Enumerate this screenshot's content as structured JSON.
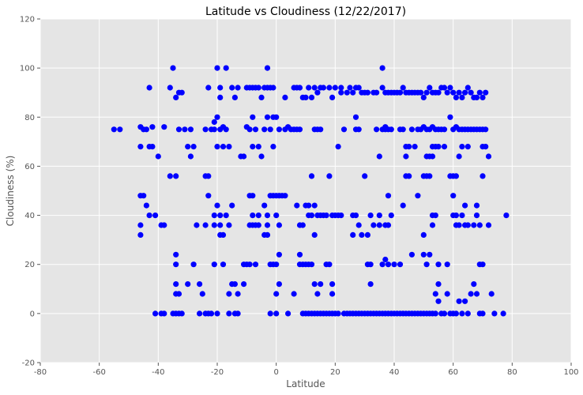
{
  "chart_data": {
    "type": "scatter",
    "title": "Latitude vs Cloudiness (12/22/2017)",
    "xlabel": "Latitude",
    "ylabel": "Cloudiness (%)",
    "xlim": [
      -80,
      100
    ],
    "ylim": [
      -20,
      120
    ],
    "x_ticks": [
      -80,
      -60,
      -40,
      -20,
      0,
      20,
      40,
      60,
      80,
      100
    ],
    "y_ticks": [
      -20,
      0,
      20,
      40,
      60,
      80,
      100,
      120
    ],
    "grid": true,
    "plot_background": "#e5e5e5",
    "marker_color": "#0000ff",
    "points": [
      [
        -55,
        75
      ],
      [
        -53,
        75
      ],
      [
        -46,
        76
      ],
      [
        -45,
        75
      ],
      [
        -46,
        68
      ],
      [
        -44,
        75
      ],
      [
        -42,
        76
      ],
      [
        -46,
        36
      ],
      [
        -46,
        32
      ],
      [
        -45,
        48
      ],
      [
        -46,
        48
      ],
      [
        -43,
        92
      ],
      [
        -43,
        68
      ],
      [
        -42,
        68
      ],
      [
        -44,
        44
      ],
      [
        -43,
        40
      ],
      [
        -41,
        40
      ],
      [
        -40,
        64
      ],
      [
        -41,
        0
      ],
      [
        -39,
        0
      ],
      [
        -38,
        0
      ],
      [
        -38,
        36
      ],
      [
        -39,
        36
      ],
      [
        -38,
        76
      ],
      [
        -36,
        56
      ],
      [
        -36,
        92
      ],
      [
        -35,
        100
      ],
      [
        -34,
        88
      ],
      [
        -33,
        90
      ],
      [
        -32,
        90
      ],
      [
        -34,
        56
      ],
      [
        -33,
        75
      ],
      [
        -31,
        75
      ],
      [
        -29,
        75
      ],
      [
        -30,
        68
      ],
      [
        -28,
        68
      ],
      [
        -29,
        64
      ],
      [
        -35,
        0
      ],
      [
        -34,
        0
      ],
      [
        -33,
        0
      ],
      [
        -32,
        0
      ],
      [
        -34,
        24
      ],
      [
        -34,
        20
      ],
      [
        -33,
        8
      ],
      [
        -34,
        8
      ],
      [
        -34,
        12
      ],
      [
        -30,
        12
      ],
      [
        -28,
        20
      ],
      [
        -27,
        36
      ],
      [
        -26,
        12
      ],
      [
        -25,
        8
      ],
      [
        -24,
        0
      ],
      [
        -23,
        0
      ],
      [
        -26,
        0
      ],
      [
        -24,
        36
      ],
      [
        -24,
        56
      ],
      [
        -23,
        56
      ],
      [
        -23,
        48
      ],
      [
        -24,
        75
      ],
      [
        -23,
        92
      ],
      [
        -22,
        75
      ],
      [
        -21,
        78
      ],
      [
        -20,
        80
      ],
      [
        -20,
        100
      ],
      [
        -19,
        92
      ],
      [
        -19,
        88
      ],
      [
        -18,
        76
      ],
      [
        -21,
        75
      ],
      [
        -19,
        75
      ],
      [
        -17,
        75
      ],
      [
        -20,
        68
      ],
      [
        -18,
        68
      ],
      [
        -16,
        68
      ],
      [
        -17,
        100
      ],
      [
        -15,
        92
      ],
      [
        -14,
        88
      ],
      [
        -13,
        92
      ],
      [
        -21,
        40
      ],
      [
        -19,
        40
      ],
      [
        -20,
        44
      ],
      [
        -21,
        36
      ],
      [
        -19,
        36
      ],
      [
        -19,
        32
      ],
      [
        -18,
        32
      ],
      [
        -17,
        40
      ],
      [
        -16,
        36
      ],
      [
        -15,
        44
      ],
      [
        -15,
        12
      ],
      [
        -14,
        12
      ],
      [
        -13,
        8
      ],
      [
        -16,
        8
      ],
      [
        -18,
        20
      ],
      [
        -21,
        20
      ],
      [
        -22,
        0
      ],
      [
        -20,
        0
      ],
      [
        -16,
        0
      ],
      [
        -14,
        0
      ],
      [
        -13,
        0
      ],
      [
        -12,
        64
      ],
      [
        -11,
        64
      ],
      [
        -10,
        76
      ],
      [
        -9,
        75
      ],
      [
        -11,
        20
      ],
      [
        -10,
        20
      ],
      [
        -11,
        12
      ],
      [
        -9,
        20
      ],
      [
        -8,
        36
      ],
      [
        -9,
        36
      ],
      [
        -8,
        40
      ],
      [
        -7,
        36
      ],
      [
        -7,
        20
      ],
      [
        -6,
        36
      ],
      [
        -6,
        40
      ],
      [
        -9,
        48
      ],
      [
        -8,
        48
      ],
      [
        -10,
        92
      ],
      [
        -9,
        92
      ],
      [
        -8,
        92
      ],
      [
        -7,
        92
      ],
      [
        -6,
        92
      ],
      [
        -5,
        88
      ],
      [
        -4,
        92
      ],
      [
        -3,
        92
      ],
      [
        -3,
        100
      ],
      [
        -2,
        92
      ],
      [
        -1,
        92
      ],
      [
        -8,
        80
      ],
      [
        -8,
        68
      ],
      [
        -7,
        75
      ],
      [
        -6,
        68
      ],
      [
        -5,
        64
      ],
      [
        -4,
        75
      ],
      [
        -3,
        80
      ],
      [
        -2,
        75
      ],
      [
        -1,
        80
      ],
      [
        -1,
        68
      ],
      [
        0,
        80
      ],
      [
        1,
        75
      ],
      [
        -4,
        44
      ],
      [
        -3,
        40
      ],
      [
        -3,
        36
      ],
      [
        -4,
        32
      ],
      [
        -3,
        32
      ],
      [
        -2,
        48
      ],
      [
        -1,
        48
      ],
      [
        0,
        48
      ],
      [
        1,
        48
      ],
      [
        0,
        40
      ],
      [
        1,
        36
      ],
      [
        2,
        48
      ],
      [
        3,
        48
      ],
      [
        -2,
        20
      ],
      [
        -1,
        20
      ],
      [
        0,
        8
      ],
      [
        1,
        12
      ],
      [
        1,
        24
      ],
      [
        0,
        20
      ],
      [
        -2,
        0
      ],
      [
        0,
        0
      ],
      [
        3,
        75
      ],
      [
        4,
        76
      ],
      [
        5,
        75
      ],
      [
        6,
        75
      ],
      [
        7,
        75
      ],
      [
        8,
        75
      ],
      [
        3,
        88
      ],
      [
        6,
        92
      ],
      [
        7,
        92
      ],
      [
        8,
        92
      ],
      [
        9,
        88
      ],
      [
        10,
        88
      ],
      [
        11,
        92
      ],
      [
        12,
        88
      ],
      [
        13,
        92
      ],
      [
        14,
        90
      ],
      [
        15,
        92
      ],
      [
        16,
        92
      ],
      [
        18,
        92
      ],
      [
        19,
        88
      ],
      [
        20,
        92
      ],
      [
        7,
        44
      ],
      [
        8,
        36
      ],
      [
        9,
        36
      ],
      [
        10,
        44
      ],
      [
        11,
        40
      ],
      [
        11,
        44
      ],
      [
        12,
        40
      ],
      [
        13,
        44
      ],
      [
        13,
        32
      ],
      [
        14,
        40
      ],
      [
        15,
        40
      ],
      [
        16,
        40
      ],
      [
        17,
        40
      ],
      [
        18,
        56
      ],
      [
        19,
        40
      ],
      [
        20,
        40
      ],
      [
        21,
        40
      ],
      [
        22,
        40
      ],
      [
        8,
        20
      ],
      [
        8,
        24
      ],
      [
        9,
        20
      ],
      [
        10,
        20
      ],
      [
        11,
        20
      ],
      [
        12,
        20
      ],
      [
        13,
        12
      ],
      [
        14,
        8
      ],
      [
        15,
        12
      ],
      [
        16,
        0
      ],
      [
        17,
        20
      ],
      [
        18,
        20
      ],
      [
        19,
        12
      ],
      [
        19,
        8
      ],
      [
        4,
        0
      ],
      [
        6,
        8
      ],
      [
        9,
        0
      ],
      [
        10,
        0
      ],
      [
        11,
        0
      ],
      [
        12,
        0
      ],
      [
        13,
        0
      ],
      [
        14,
        0
      ],
      [
        15,
        0
      ],
      [
        17,
        0
      ],
      [
        18,
        0
      ],
      [
        19,
        0
      ],
      [
        20,
        0
      ],
      [
        12,
        56
      ],
      [
        13,
        75
      ],
      [
        14,
        75
      ],
      [
        15,
        75
      ],
      [
        21,
        68
      ],
      [
        23,
        75
      ],
      [
        24,
        90
      ],
      [
        25,
        92
      ],
      [
        26,
        90
      ],
      [
        27,
        92
      ],
      [
        28,
        92
      ],
      [
        29,
        90
      ],
      [
        30,
        90
      ],
      [
        31,
        90
      ],
      [
        33,
        90
      ],
      [
        34,
        90
      ],
      [
        22,
        92
      ],
      [
        22,
        90
      ],
      [
        27,
        75
      ],
      [
        27,
        80
      ],
      [
        28,
        75
      ],
      [
        30,
        56
      ],
      [
        26,
        40
      ],
      [
        27,
        40
      ],
      [
        26,
        32
      ],
      [
        28,
        36
      ],
      [
        29,
        32
      ],
      [
        32,
        40
      ],
      [
        33,
        36
      ],
      [
        31,
        32
      ],
      [
        31,
        20
      ],
      [
        32,
        20
      ],
      [
        32,
        12
      ],
      [
        21,
        0
      ],
      [
        23,
        0
      ],
      [
        24,
        0
      ],
      [
        25,
        0
      ],
      [
        26,
        0
      ],
      [
        27,
        0
      ],
      [
        28,
        0
      ],
      [
        29,
        0
      ],
      [
        30,
        0
      ],
      [
        31,
        0
      ],
      [
        32,
        0
      ],
      [
        33,
        0
      ],
      [
        34,
        0
      ],
      [
        35,
        0
      ],
      [
        35,
        36
      ],
      [
        35,
        40
      ],
      [
        34,
        75
      ],
      [
        35,
        64
      ],
      [
        36,
        92
      ],
      [
        36,
        100
      ],
      [
        37,
        90
      ],
      [
        36,
        75
      ],
      [
        37,
        75
      ],
      [
        37,
        76
      ],
      [
        38,
        75
      ],
      [
        39,
        75
      ],
      [
        38,
        90
      ],
      [
        39,
        90
      ],
      [
        40,
        90
      ],
      [
        41,
        90
      ],
      [
        42,
        90
      ],
      [
        43,
        92
      ],
      [
        44,
        90
      ],
      [
        45,
        90
      ],
      [
        46,
        90
      ],
      [
        47,
        90
      ],
      [
        48,
        90
      ],
      [
        49,
        90
      ],
      [
        50,
        88
      ],
      [
        51,
        90
      ],
      [
        52,
        92
      ],
      [
        53,
        90
      ],
      [
        54,
        90
      ],
      [
        55,
        90
      ],
      [
        56,
        92
      ],
      [
        57,
        92
      ],
      [
        58,
        90
      ],
      [
        59,
        92
      ],
      [
        60,
        90
      ],
      [
        61,
        88
      ],
      [
        62,
        90
      ],
      [
        63,
        88
      ],
      [
        64,
        90
      ],
      [
        65,
        92
      ],
      [
        66,
        90
      ],
      [
        67,
        88
      ],
      [
        68,
        88
      ],
      [
        69,
        90
      ],
      [
        70,
        88
      ],
      [
        71,
        90
      ],
      [
        42,
        75
      ],
      [
        43,
        75
      ],
      [
        44,
        64
      ],
      [
        44,
        68
      ],
      [
        45,
        68
      ],
      [
        46,
        75
      ],
      [
        47,
        68
      ],
      [
        48,
        75
      ],
      [
        49,
        75
      ],
      [
        50,
        76
      ],
      [
        51,
        75
      ],
      [
        52,
        75
      ],
      [
        53,
        76
      ],
      [
        54,
        75
      ],
      [
        55,
        75
      ],
      [
        56,
        75
      ],
      [
        57,
        75
      ],
      [
        51,
        64
      ],
      [
        52,
        64
      ],
      [
        53,
        64
      ],
      [
        53,
        68
      ],
      [
        54,
        68
      ],
      [
        55,
        68
      ],
      [
        50,
        56
      ],
      [
        51,
        56
      ],
      [
        52,
        56
      ],
      [
        57,
        68
      ],
      [
        59,
        80
      ],
      [
        60,
        75
      ],
      [
        61,
        76
      ],
      [
        62,
        75
      ],
      [
        63,
        75
      ],
      [
        64,
        75
      ],
      [
        65,
        75
      ],
      [
        66,
        75
      ],
      [
        67,
        75
      ],
      [
        68,
        75
      ],
      [
        69,
        75
      ],
      [
        70,
        75
      ],
      [
        71,
        75
      ],
      [
        59,
        56
      ],
      [
        60,
        56
      ],
      [
        61,
        56
      ],
      [
        62,
        64
      ],
      [
        63,
        68
      ],
      [
        65,
        68
      ],
      [
        70,
        68
      ],
      [
        71,
        68
      ],
      [
        70,
        56
      ],
      [
        63,
        40
      ],
      [
        64,
        44
      ],
      [
        64,
        36
      ],
      [
        65,
        36
      ],
      [
        67,
        36
      ],
      [
        68,
        44
      ],
      [
        69,
        36
      ],
      [
        68,
        40
      ],
      [
        60,
        40
      ],
      [
        61,
        40
      ],
      [
        61,
        36
      ],
      [
        62,
        36
      ],
      [
        43,
        44
      ],
      [
        44,
        56
      ],
      [
        45,
        56
      ],
      [
        46,
        24
      ],
      [
        48,
        48
      ],
      [
        50,
        32
      ],
      [
        50,
        24
      ],
      [
        51,
        20
      ],
      [
        52,
        24
      ],
      [
        53,
        36
      ],
      [
        53,
        40
      ],
      [
        54,
        40
      ],
      [
        55,
        20
      ],
      [
        55,
        12
      ],
      [
        54,
        8
      ],
      [
        55,
        5
      ],
      [
        58,
        8
      ],
      [
        58,
        20
      ],
      [
        60,
        48
      ],
      [
        62,
        5
      ],
      [
        64,
        5
      ],
      [
        66,
        8
      ],
      [
        67,
        12
      ],
      [
        68,
        8
      ],
      [
        69,
        20
      ],
      [
        70,
        20
      ],
      [
        70,
        0
      ],
      [
        69,
        0
      ],
      [
        72,
        36
      ],
      [
        72,
        64
      ],
      [
        73,
        8
      ],
      [
        74,
        0
      ],
      [
        77,
        0
      ],
      [
        78,
        40
      ],
      [
        36,
        20
      ],
      [
        37,
        22
      ],
      [
        38,
        20
      ],
      [
        37,
        36
      ],
      [
        38,
        36
      ],
      [
        38,
        48
      ],
      [
        39,
        40
      ],
      [
        40,
        20
      ],
      [
        42,
        20
      ],
      [
        36,
        0
      ],
      [
        37,
        0
      ],
      [
        38,
        0
      ],
      [
        39,
        0
      ],
      [
        40,
        0
      ],
      [
        41,
        0
      ],
      [
        42,
        0
      ],
      [
        43,
        0
      ],
      [
        44,
        0
      ],
      [
        45,
        0
      ],
      [
        46,
        0
      ],
      [
        47,
        0
      ],
      [
        48,
        0
      ],
      [
        49,
        0
      ],
      [
        50,
        0
      ],
      [
        51,
        0
      ],
      [
        52,
        0
      ],
      [
        53,
        0
      ],
      [
        54,
        0
      ],
      [
        56,
        0
      ],
      [
        57,
        0
      ],
      [
        59,
        0
      ],
      [
        60,
        0
      ],
      [
        61,
        0
      ],
      [
        63,
        0
      ],
      [
        65,
        0
      ]
    ]
  }
}
